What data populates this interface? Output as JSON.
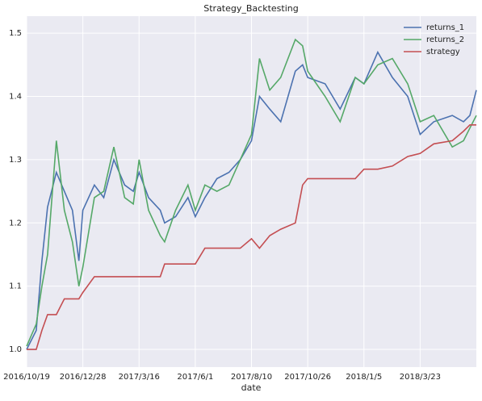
{
  "chart_data": {
    "type": "line",
    "title": "Strategy_Backtesting",
    "x_label": "date",
    "x": [
      "2016/10/19",
      "2016/10/31",
      "2016/11/7",
      "2016/11/14",
      "2016/11/25",
      "2016/12/5",
      "2016/12/15",
      "2016/12/23",
      "2016/12/28",
      "2017/1/13",
      "2017/1/26",
      "2017/2/9",
      "2017/2/24",
      "2017/3/8",
      "2017/3/16",
      "2017/3/29",
      "2017/4/14",
      "2017/4/20",
      "2017/5/5",
      "2017/5/22",
      "2017/6/1",
      "2017/6/13",
      "2017/6/28",
      "2017/7/13",
      "2017/7/27",
      "2017/8/10",
      "2017/8/21",
      "2017/9/4",
      "2017/9/19",
      "2017/10/9",
      "2017/10/19",
      "2017/10/26",
      "2017/11/17",
      "2017/12/6",
      "2017/12/25",
      "2018/1/5",
      "2018/1/24",
      "2018/2/13",
      "2018/3/6",
      "2018/3/23",
      "2018/4/9",
      "2018/5/2",
      "2018/5/16",
      "2018/5/24",
      "2018/6/1"
    ],
    "series": [
      {
        "name": "returns_1",
        "color": "#4c72b0",
        "values": [
          1.0,
          1.03,
          1.14,
          1.225,
          1.28,
          1.25,
          1.22,
          1.14,
          1.22,
          1.26,
          1.24,
          1.3,
          1.26,
          1.25,
          1.28,
          1.24,
          1.22,
          1.2,
          1.21,
          1.24,
          1.21,
          1.24,
          1.27,
          1.28,
          1.3,
          1.33,
          1.4,
          1.38,
          1.36,
          1.44,
          1.45,
          1.43,
          1.42,
          1.38,
          1.43,
          1.42,
          1.47,
          1.43,
          1.4,
          1.34,
          1.36,
          1.37,
          1.36,
          1.37,
          1.41
        ]
      },
      {
        "name": "returns_2",
        "color": "#55a868",
        "values": [
          1.005,
          1.04,
          1.1,
          1.15,
          1.33,
          1.22,
          1.17,
          1.1,
          1.13,
          1.24,
          1.25,
          1.32,
          1.24,
          1.23,
          1.3,
          1.22,
          1.18,
          1.17,
          1.22,
          1.26,
          1.22,
          1.26,
          1.25,
          1.26,
          1.3,
          1.34,
          1.46,
          1.41,
          1.43,
          1.49,
          1.48,
          1.44,
          1.4,
          1.36,
          1.43,
          1.42,
          1.45,
          1.46,
          1.42,
          1.36,
          1.37,
          1.32,
          1.33,
          1.35,
          1.37
        ]
      },
      {
        "name": "strategy",
        "color": "#c44e52",
        "values": [
          1.0,
          1.0,
          1.03,
          1.055,
          1.055,
          1.08,
          1.08,
          1.08,
          1.09,
          1.115,
          1.115,
          1.115,
          1.115,
          1.115,
          1.115,
          1.115,
          1.115,
          1.135,
          1.135,
          1.135,
          1.135,
          1.16,
          1.16,
          1.16,
          1.16,
          1.175,
          1.16,
          1.18,
          1.19,
          1.2,
          1.26,
          1.27,
          1.27,
          1.27,
          1.27,
          1.285,
          1.285,
          1.29,
          1.305,
          1.31,
          1.325,
          1.33,
          1.345,
          1.355,
          1.355
        ]
      }
    ],
    "xlim": [
      "2016/10/19",
      "2018/6/1"
    ],
    "xticks": [
      "2016/10/19",
      "2016/12/28",
      "2017/3/16",
      "2017/6/1",
      "2017/8/10",
      "2017/10/26",
      "2018/1/5",
      "2018/3/23"
    ],
    "ylim": [
      0.972,
      1.527
    ],
    "yticks": [
      {
        "value": 1,
        "label": "1.0"
      },
      1.1,
      1.2,
      1.3,
      1.4,
      1.5
    ],
    "grid": true,
    "legend": "upper right"
  }
}
